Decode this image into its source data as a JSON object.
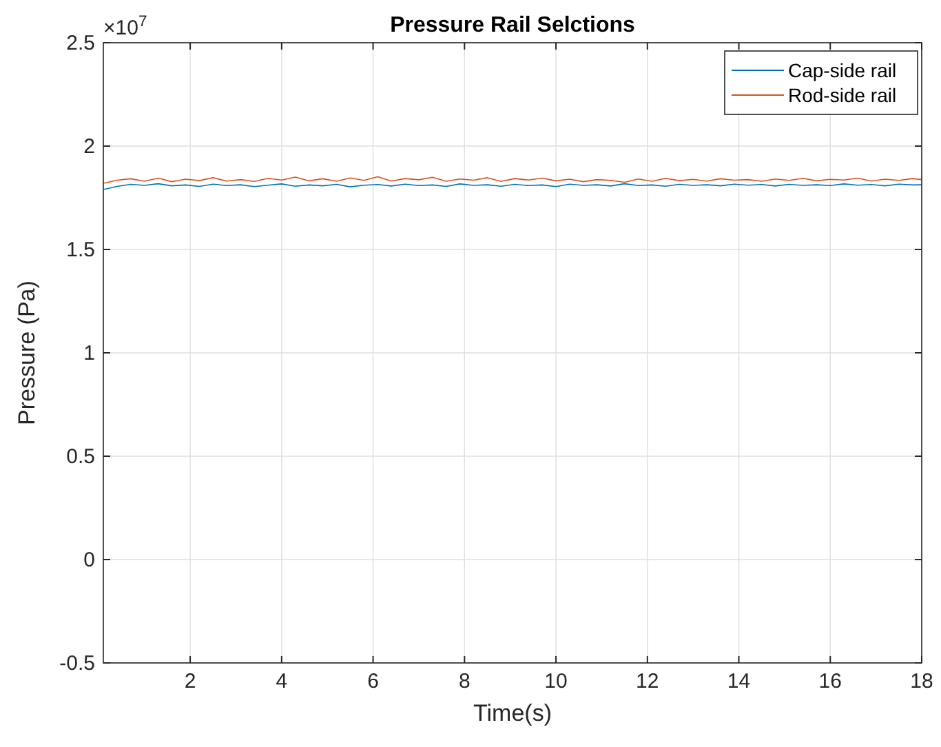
{
  "chart_data": {
    "type": "line",
    "title": "Pressure Rail Selctions",
    "xlabel": "Time(s)",
    "ylabel": "Pressure (Pa)",
    "annotations": [
      "×10$^{7}$"
    ],
    "x": [
      0.1,
      0.4,
      0.7,
      1.0,
      1.3,
      1.6,
      1.9,
      2.2,
      2.5,
      2.8,
      3.1,
      3.4,
      3.7,
      4.0,
      4.3,
      4.6,
      4.9,
      5.2,
      5.5,
      5.8,
      6.1,
      6.4,
      6.7,
      7.0,
      7.3,
      7.6,
      7.9,
      8.2,
      8.5,
      8.8,
      9.1,
      9.4,
      9.7,
      10.0,
      10.3,
      10.6,
      10.9,
      11.2,
      11.5,
      11.8,
      12.1,
      12.4,
      12.7,
      13.0,
      13.3,
      13.6,
      13.9,
      14.2,
      14.5,
      14.8,
      15.1,
      15.4,
      15.7,
      16.0,
      16.3,
      16.6,
      16.9,
      17.2,
      17.5,
      17.8,
      18
    ],
    "series": [
      {
        "name": "Cap-side rail",
        "color": "#0072bd",
        "values": [
          1.79,
          1.805,
          1.815,
          1.81,
          1.818,
          1.808,
          1.812,
          1.805,
          1.816,
          1.809,
          1.813,
          1.804,
          1.811,
          1.817,
          1.806,
          1.812,
          1.808,
          1.815,
          1.803,
          1.811,
          1.814,
          1.807,
          1.816,
          1.809,
          1.812,
          1.805,
          1.817,
          1.81,
          1.813,
          1.806,
          1.815,
          1.809,
          1.812,
          1.804,
          1.816,
          1.81,
          1.813,
          1.807,
          1.818,
          1.809,
          1.812,
          1.806,
          1.815,
          1.81,
          1.813,
          1.808,
          1.816,
          1.811,
          1.814,
          1.807,
          1.815,
          1.81,
          1.813,
          1.809,
          1.817,
          1.811,
          1.814,
          1.808,
          1.816,
          1.812,
          1.813
        ]
      },
      {
        "name": "Rod-side rail",
        "color": "#d95319",
        "values": [
          1.82,
          1.835,
          1.842,
          1.83,
          1.845,
          1.828,
          1.84,
          1.833,
          1.847,
          1.831,
          1.838,
          1.829,
          1.844,
          1.836,
          1.85,
          1.832,
          1.842,
          1.83,
          1.846,
          1.834,
          1.852,
          1.831,
          1.843,
          1.837,
          1.849,
          1.83,
          1.841,
          1.835,
          1.847,
          1.829,
          1.843,
          1.836,
          1.845,
          1.832,
          1.84,
          1.828,
          1.838,
          1.834,
          1.825,
          1.841,
          1.83,
          1.844,
          1.833,
          1.839,
          1.831,
          1.842,
          1.835,
          1.838,
          1.83,
          1.841,
          1.834,
          1.844,
          1.832,
          1.839,
          1.836,
          1.845,
          1.831,
          1.84,
          1.834,
          1.843,
          1.838
        ]
      }
    ],
    "xlim": [
      0.1,
      18
    ],
    "xticks": [
      2,
      4,
      6,
      8,
      10,
      12,
      14,
      16,
      18
    ],
    "ylim": [
      -0.5,
      2.5
    ],
    "yticks": [
      -0.5,
      0,
      0.5,
      1,
      1.5,
      2,
      2.5
    ],
    "grid": true,
    "legend": "top right",
    "marker": "none",
    "line_style": "solid"
  }
}
